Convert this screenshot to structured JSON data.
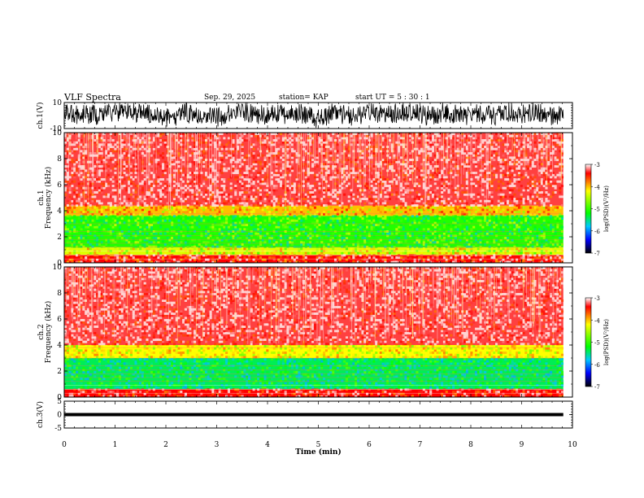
{
  "header": {
    "title": "VLF Spectra",
    "date": "Sep. 29, 2025",
    "station": "station= KAP",
    "start": "start  UT =   5 : 30 : 1"
  },
  "chart_data": {
    "type": "spectrogram",
    "x": {
      "label": "Time  (min)",
      "range": [
        0,
        10
      ],
      "ticks": [
        "0",
        "1",
        "2",
        "3",
        "4",
        "5",
        "6",
        "7",
        "8",
        "9",
        "10"
      ],
      "data_end": 9.82
    },
    "panels": [
      {
        "id": "ch1_wave",
        "type": "line",
        "ylabel": "ch.1(V)",
        "ylim": [
          -10,
          10
        ],
        "yticks": [
          "10",
          "-10"
        ],
        "description_values": {
          "mean": 1.5,
          "amplitude": 7.5
        }
      },
      {
        "id": "ch1_spec",
        "type": "heatmap",
        "ylabel_top": "ch.1",
        "ylabel": "Frequency  (kHz)",
        "ylim": [
          0,
          10
        ],
        "yticks": [
          "0",
          "2",
          "4",
          "6",
          "8",
          "10"
        ],
        "bands_khz": [
          {
            "from": 0.0,
            "to": 0.6,
            "level": -3.4
          },
          {
            "from": 0.6,
            "to": 1.2,
            "level": -4.3
          },
          {
            "from": 1.2,
            "to": 3.6,
            "level": -4.9
          },
          {
            "from": 3.6,
            "to": 4.4,
            "level": -4.0
          },
          {
            "from": 4.4,
            "to": 10.0,
            "level": -3.3
          }
        ]
      },
      {
        "id": "ch2_spec",
        "type": "heatmap",
        "ylabel_top": "ch.2",
        "ylabel": "Frequency  (kHz)",
        "ylim": [
          0,
          10
        ],
        "yticks": [
          "0",
          "2",
          "4",
          "6",
          "8",
          "10"
        ],
        "bands_khz": [
          {
            "from": 0.0,
            "to": 0.6,
            "level": -3.4
          },
          {
            "from": 0.6,
            "to": 3.0,
            "level": -5.2
          },
          {
            "from": 3.0,
            "to": 4.0,
            "level": -4.2
          },
          {
            "from": 4.0,
            "to": 10.0,
            "level": -3.3
          }
        ]
      },
      {
        "id": "ch3_wave",
        "type": "line",
        "ylabel": "ch.3(V)",
        "ylim": [
          -5,
          5
        ],
        "yticks": [
          "5",
          "0",
          "-5"
        ],
        "description_values": {
          "mean": 0.0,
          "amplitude": 0.6
        }
      }
    ],
    "colorbar": {
      "label": "log(PSD)(V²/Hz)",
      "range": [
        -7,
        -3
      ],
      "ticks": [
        "-3",
        "-4",
        "-5",
        "-6",
        "-7"
      ],
      "colors": [
        "#ffffff",
        "#ff0000",
        "#ffff00",
        "#00ff00",
        "#00c0ff",
        "#0000ff",
        "#000000"
      ]
    }
  }
}
